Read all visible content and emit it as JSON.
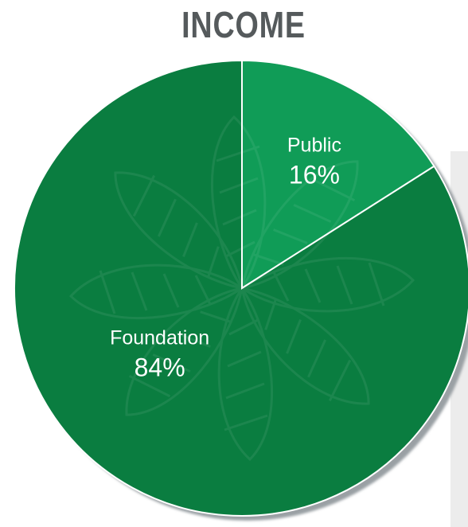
{
  "chart_data": {
    "type": "pie",
    "title": "INCOME",
    "slices": [
      {
        "label": "Public",
        "value": 16,
        "value_label": "16%",
        "color": "#109c57"
      },
      {
        "label": "Foundation",
        "value": 84,
        "value_label": "84%",
        "color": "#0a7d40"
      }
    ],
    "shadow_color": "#9aa0a4",
    "background_panel_color": "#ececec",
    "title_color": "#555a5c",
    "label_color": "#ffffff"
  }
}
